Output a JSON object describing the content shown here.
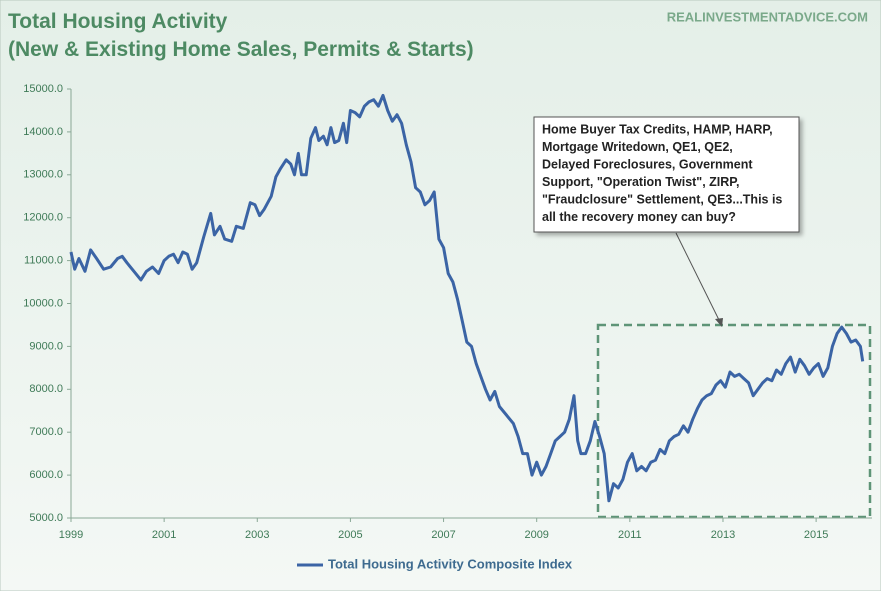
{
  "chart_data": {
    "type": "line",
    "title": "Total Housing Activity",
    "subtitle": "(New & Existing Home Sales, Permits & Starts)",
    "source": "REALINVESTMENTADVICE.COM",
    "annotation": [
      "Home Buyer Tax Credits, HAMP, HARP,",
      "Mortgage Writedown,  QE1, QE2,",
      "Delayed Foreclosures, Government",
      "Support, \"Operation Twist\", ZIRP,",
      "\"Fraudclosure\" Settlement, QE3...This is",
      "all the recovery money can buy?"
    ],
    "x": [
      1999.0,
      1999.08,
      1999.17,
      1999.3,
      1999.42,
      1999.55,
      1999.7,
      1999.85,
      2000.0,
      2000.1,
      2000.2,
      2000.35,
      2000.5,
      2000.62,
      2000.75,
      2000.88,
      2001.0,
      2001.1,
      2001.2,
      2001.3,
      2001.4,
      2001.5,
      2001.6,
      2001.7,
      2001.85,
      2002.0,
      2002.08,
      2002.2,
      2002.3,
      2002.45,
      2002.55,
      2002.7,
      2002.85,
      2002.95,
      2003.05,
      2003.15,
      2003.3,
      2003.4,
      2003.5,
      2003.62,
      2003.72,
      2003.8,
      2003.88,
      2003.95,
      2004.05,
      2004.15,
      2004.25,
      2004.32,
      2004.42,
      2004.5,
      2004.58,
      2004.66,
      2004.75,
      2004.85,
      2004.92,
      2005.0,
      2005.1,
      2005.2,
      2005.3,
      2005.4,
      2005.5,
      2005.6,
      2005.7,
      2005.8,
      2005.9,
      2006.0,
      2006.1,
      2006.2,
      2006.3,
      2006.4,
      2006.5,
      2006.6,
      2006.7,
      2006.8,
      2006.9,
      2007.0,
      2007.1,
      2007.2,
      2007.3,
      2007.4,
      2007.5,
      2007.6,
      2007.7,
      2007.8,
      2007.9,
      2008.0,
      2008.1,
      2008.2,
      2008.35,
      2008.5,
      2008.6,
      2008.7,
      2008.8,
      2008.9,
      2009.0,
      2009.1,
      2009.2,
      2009.3,
      2009.4,
      2009.5,
      2009.6,
      2009.7,
      2009.8,
      2009.88,
      2009.95,
      2010.05,
      2010.15,
      2010.25,
      2010.35,
      2010.45,
      2010.55,
      2010.65,
      2010.75,
      2010.85,
      2010.95,
      2011.05,
      2011.15,
      2011.25,
      2011.35,
      2011.45,
      2011.55,
      2011.65,
      2011.75,
      2011.85,
      2011.95,
      2012.05,
      2012.15,
      2012.25,
      2012.35,
      2012.45,
      2012.55,
      2012.65,
      2012.75,
      2012.85,
      2012.95,
      2013.05,
      2013.15,
      2013.25,
      2013.35,
      2013.45,
      2013.55,
      2013.65,
      2013.75,
      2013.85,
      2013.95,
      2014.05,
      2014.15,
      2014.25,
      2014.35,
      2014.45,
      2014.55,
      2014.65,
      2014.75,
      2014.85,
      2014.95,
      2015.05,
      2015.15,
      2015.25,
      2015.35,
      2015.45,
      2015.55,
      2015.65,
      2015.75,
      2015.85,
      2015.95,
      2016.0
    ],
    "series": [
      {
        "name": "Total Housing Activity Composite Index",
        "color": "#3b64a5",
        "values": [
          11200,
          10800,
          11050,
          10750,
          11250,
          11050,
          10800,
          10850,
          11050,
          11100,
          10950,
          10750,
          10550,
          10750,
          10850,
          10700,
          11000,
          11100,
          11150,
          10950,
          11200,
          11150,
          10800,
          10950,
          11550,
          12100,
          11600,
          11800,
          11500,
          11450,
          11800,
          11750,
          12350,
          12300,
          12050,
          12200,
          12500,
          12950,
          13150,
          13350,
          13250,
          13000,
          13500,
          13000,
          13000,
          13850,
          14100,
          13800,
          13900,
          13700,
          14100,
          13750,
          13800,
          14200,
          13750,
          14500,
          14450,
          14350,
          14600,
          14700,
          14750,
          14600,
          14850,
          14500,
          14250,
          14400,
          14200,
          13700,
          13300,
          12700,
          12600,
          12300,
          12400,
          12600,
          11500,
          11300,
          10700,
          10500,
          10100,
          9600,
          9100,
          9000,
          8600,
          8300,
          8000,
          7750,
          7950,
          7600,
          7400,
          7200,
          6900,
          6500,
          6500,
          6000,
          6300,
          6000,
          6200,
          6500,
          6800,
          6900,
          7000,
          7300,
          7850,
          6800,
          6500,
          6500,
          6800,
          7250,
          6900,
          6500,
          5400,
          5800,
          5700,
          5900,
          6300,
          6500,
          6100,
          6200,
          6100,
          6300,
          6350,
          6600,
          6500,
          6800,
          6900,
          6950,
          7150,
          7000,
          7300,
          7550,
          7750,
          7850,
          7900,
          8100,
          8200,
          8050,
          8400,
          8300,
          8350,
          8250,
          8150,
          7850,
          8000,
          8150,
          8250,
          8200,
          8450,
          8350,
          8600,
          8750,
          8400,
          8700,
          8550,
          8350,
          8500,
          8600,
          8300,
          8500,
          9000,
          9300,
          9450,
          9300,
          9100,
          9150,
          9000,
          8650
        ]
      }
    ],
    "xlim": [
      1999,
      2016.2
    ],
    "xticks": [
      1999,
      2001,
      2003,
      2005,
      2007,
      2009,
      2011,
      2013,
      2015
    ],
    "ylim": [
      5000,
      15000
    ],
    "yticks": [
      {
        "value": 5000,
        "label": "5000.0"
      },
      {
        "value": 6000,
        "label": "6000.0"
      },
      {
        "value": 7000,
        "label": "7000.0"
      },
      {
        "value": 8000,
        "label": "8000.0"
      },
      {
        "value": 9000,
        "label": "9000.0"
      },
      {
        "value": 10000,
        "label": "10000.0"
      },
      {
        "value": 11000,
        "label": "11000.0"
      },
      {
        "value": 12000,
        "label": "12000.0"
      },
      {
        "value": 13000,
        "label": "13000.0"
      },
      {
        "value": 14000,
        "label": "14000.0"
      },
      {
        "value": 15000,
        "label": "15000.0"
      }
    ],
    "grid": false,
    "legend": "bottom"
  }
}
